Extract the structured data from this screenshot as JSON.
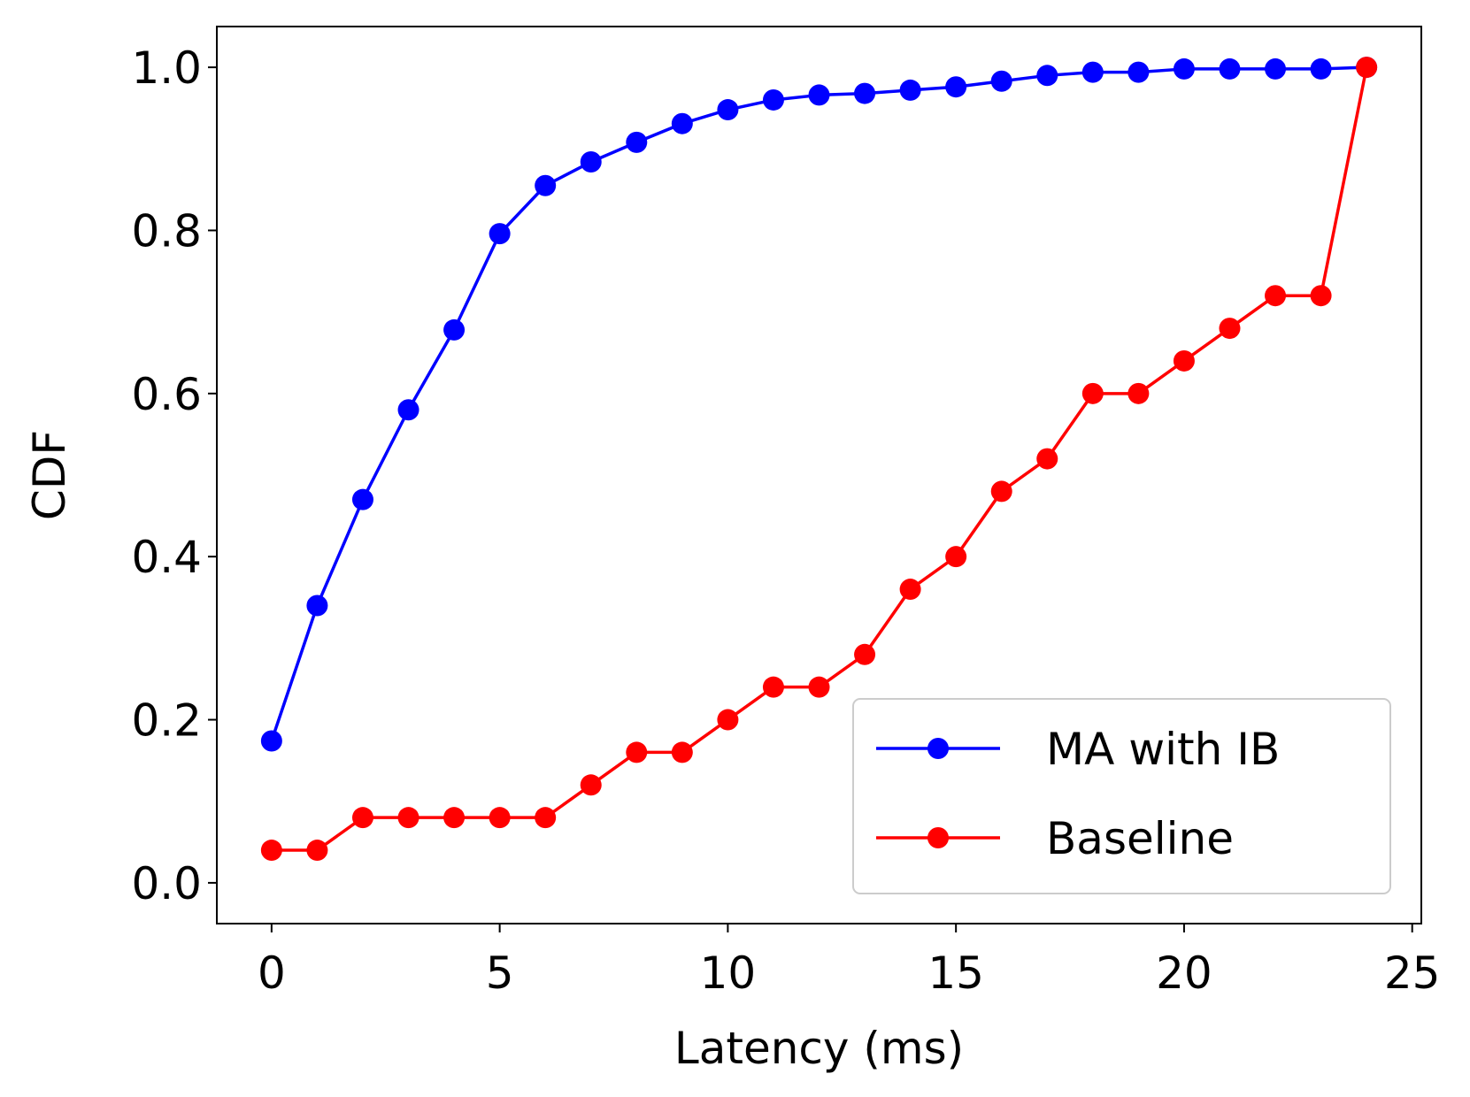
{
  "chart_data": {
    "type": "line",
    "title": "",
    "xlabel": "Latency (ms)",
    "ylabel": "CDF",
    "xlim": [
      -1.2,
      25.2
    ],
    "ylim": [
      -0.05,
      1.05
    ],
    "grid": false,
    "legend_position": "lower-right",
    "x_ticks": [
      0,
      5,
      10,
      15,
      20,
      25
    ],
    "x_tick_labels": [
      "0",
      "5",
      "10",
      "15",
      "20",
      "25"
    ],
    "y_ticks": [
      0.0,
      0.2,
      0.4,
      0.6,
      0.8,
      1.0
    ],
    "y_tick_labels": [
      "0.0",
      "0.2",
      "0.4",
      "0.6",
      "0.8",
      "1.0"
    ],
    "x": [
      0,
      1,
      2,
      3,
      4,
      5,
      6,
      7,
      8,
      9,
      10,
      11,
      12,
      13,
      14,
      15,
      16,
      17,
      18,
      19,
      20,
      21,
      22,
      23,
      24
    ],
    "series": [
      {
        "name": "MA with IB",
        "color": "#0000ff",
        "values": [
          0.174,
          0.34,
          0.47,
          0.58,
          0.678,
          0.796,
          0.855,
          0.884,
          0.908,
          0.931,
          0.948,
          0.96,
          0.966,
          0.968,
          0.972,
          0.976,
          0.983,
          0.99,
          0.994,
          0.994,
          0.998,
          0.998,
          0.998,
          0.998,
          1.0
        ]
      },
      {
        "name": "Baseline",
        "color": "#ff0000",
        "values": [
          0.04,
          0.04,
          0.08,
          0.08,
          0.08,
          0.08,
          0.08,
          0.12,
          0.16,
          0.16,
          0.2,
          0.24,
          0.24,
          0.28,
          0.36,
          0.4,
          0.48,
          0.52,
          0.6,
          0.6,
          0.64,
          0.68,
          0.72,
          0.72,
          1.0
        ]
      }
    ]
  }
}
